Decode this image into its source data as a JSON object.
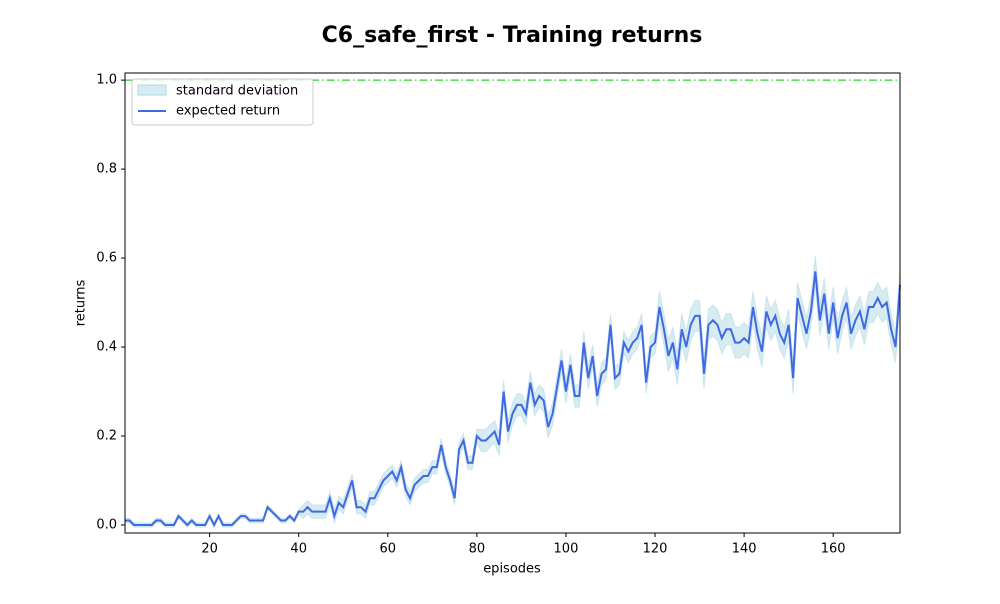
{
  "chart_data": {
    "type": "line",
    "title": "C6_safe_first - Training returns",
    "xlabel": "episodes",
    "ylabel": "returns",
    "x": [
      1,
      2,
      3,
      4,
      5,
      6,
      7,
      8,
      9,
      10,
      11,
      12,
      13,
      14,
      15,
      16,
      17,
      18,
      19,
      20,
      21,
      22,
      23,
      24,
      25,
      26,
      27,
      28,
      29,
      30,
      31,
      32,
      33,
      34,
      35,
      36,
      37,
      38,
      39,
      40,
      41,
      42,
      43,
      44,
      45,
      46,
      47,
      48,
      49,
      50,
      51,
      52,
      53,
      54,
      55,
      56,
      57,
      58,
      59,
      60,
      61,
      62,
      63,
      64,
      65,
      66,
      67,
      68,
      69,
      70,
      71,
      72,
      73,
      74,
      75,
      76,
      77,
      78,
      79,
      80,
      81,
      82,
      83,
      84,
      85,
      86,
      87,
      88,
      89,
      90,
      91,
      92,
      93,
      94,
      95,
      96,
      97,
      98,
      99,
      100,
      101,
      102,
      103,
      104,
      105,
      106,
      107,
      108,
      109,
      110,
      111,
      112,
      113,
      114,
      115,
      116,
      117,
      118,
      119,
      120,
      121,
      122,
      123,
      124,
      125,
      126,
      127,
      128,
      129,
      130,
      131,
      132,
      133,
      134,
      135,
      136,
      137,
      138,
      139,
      140,
      141,
      142,
      143,
      144,
      145,
      146,
      147,
      148,
      149,
      150,
      151,
      152,
      153,
      154,
      155,
      156,
      157,
      158,
      159,
      160,
      161,
      162,
      163,
      164,
      165,
      166,
      167,
      168,
      169,
      170,
      171,
      172,
      173,
      174,
      175
    ],
    "series": [
      {
        "name": "expected return",
        "color": "#4169e1",
        "values": [
          0.01,
          0.01,
          0,
          0,
          0,
          0,
          0,
          0.01,
          0.01,
          0,
          0,
          0,
          0.02,
          0.01,
          0,
          0.01,
          0,
          0,
          0,
          0.02,
          0,
          0.02,
          0,
          0,
          0,
          0.01,
          0.02,
          0.02,
          0.01,
          0.01,
          0.01,
          0.01,
          0.04,
          0.03,
          0.02,
          0.01,
          0.01,
          0.02,
          0.01,
          0.03,
          0.03,
          0.04,
          0.03,
          0.03,
          0.03,
          0.03,
          0.06,
          0.02,
          0.05,
          0.04,
          0.07,
          0.1,
          0.04,
          0.04,
          0.03,
          0.06,
          0.06,
          0.08,
          0.1,
          0.11,
          0.12,
          0.1,
          0.13,
          0.08,
          0.06,
          0.09,
          0.1,
          0.11,
          0.11,
          0.13,
          0.13,
          0.18,
          0.13,
          0.1,
          0.06,
          0.17,
          0.19,
          0.14,
          0.14,
          0.2,
          0.19,
          0.19,
          0.2,
          0.21,
          0.18,
          0.3,
          0.21,
          0.25,
          0.27,
          0.27,
          0.25,
          0.32,
          0.27,
          0.29,
          0.28,
          0.22,
          0.25,
          0.31,
          0.37,
          0.3,
          0.36,
          0.29,
          0.29,
          0.41,
          0.33,
          0.38,
          0.29,
          0.34,
          0.35,
          0.45,
          0.33,
          0.34,
          0.41,
          0.39,
          0.41,
          0.42,
          0.45,
          0.32,
          0.4,
          0.41,
          0.49,
          0.44,
          0.38,
          0.41,
          0.35,
          0.44,
          0.4,
          0.45,
          0.47,
          0.47,
          0.34,
          0.45,
          0.46,
          0.45,
          0.42,
          0.44,
          0.44,
          0.41,
          0.41,
          0.42,
          0.41,
          0.49,
          0.43,
          0.39,
          0.48,
          0.45,
          0.47,
          0.43,
          0.41,
          0.45,
          0.33,
          0.51,
          0.47,
          0.43,
          0.48,
          0.57,
          0.46,
          0.52,
          0.43,
          0.5,
          0.42,
          0.47,
          0.5,
          0.43,
          0.46,
          0.48,
          0.44,
          0.49,
          0.49,
          0.51,
          0.49,
          0.5,
          0.44,
          0.4,
          0.54
        ]
      }
    ],
    "band": {
      "name": "standard deviation",
      "color": "#add8e6",
      "std": [
        0.005,
        0.005,
        0.005,
        0.005,
        0.005,
        0.005,
        0.005,
        0.005,
        0.005,
        0.005,
        0.005,
        0.005,
        0.005,
        0.005,
        0.005,
        0.005,
        0.005,
        0.005,
        0.005,
        0.005,
        0.005,
        0.005,
        0.005,
        0.005,
        0.005,
        0.005,
        0.005,
        0.005,
        0.005,
        0.005,
        0.005,
        0.005,
        0.005,
        0.005,
        0.005,
        0.005,
        0.005,
        0.005,
        0.005,
        0.005,
        0.015,
        0.015,
        0.015,
        0.015,
        0.015,
        0.015,
        0.015,
        0.015,
        0.015,
        0.015,
        0.015,
        0.015,
        0.015,
        0.015,
        0.015,
        0.015,
        0.015,
        0.015,
        0.015,
        0.015,
        0.015,
        0.015,
        0.015,
        0.015,
        0.015,
        0.015,
        0.015,
        0.015,
        0.015,
        0.015,
        0.015,
        0.015,
        0.015,
        0.015,
        0.015,
        0.015,
        0.015,
        0.015,
        0.015,
        0.015,
        0.025,
        0.025,
        0.025,
        0.025,
        0.025,
        0.025,
        0.025,
        0.025,
        0.025,
        0.025,
        0.025,
        0.025,
        0.025,
        0.025,
        0.025,
        0.025,
        0.025,
        0.025,
        0.025,
        0.025,
        0.025,
        0.025,
        0.025,
        0.025,
        0.025,
        0.025,
        0.025,
        0.025,
        0.025,
        0.025,
        0.025,
        0.025,
        0.025,
        0.025,
        0.025,
        0.025,
        0.025,
        0.025,
        0.025,
        0.025,
        0.035,
        0.035,
        0.035,
        0.035,
        0.035,
        0.035,
        0.035,
        0.035,
        0.035,
        0.035,
        0.035,
        0.035,
        0.035,
        0.035,
        0.035,
        0.035,
        0.035,
        0.035,
        0.035,
        0.035,
        0.035,
        0.035,
        0.035,
        0.035,
        0.035,
        0.035,
        0.035,
        0.035,
        0.035,
        0.035,
        0.035,
        0.035,
        0.035,
        0.035,
        0.035,
        0.035,
        0.035,
        0.035,
        0.035,
        0.035,
        0.035,
        0.035,
        0.035,
        0.035,
        0.035,
        0.035,
        0.035,
        0.035,
        0.035,
        0.035,
        0.035,
        0.035,
        0.035,
        0.035,
        0.035
      ]
    },
    "reference_line": {
      "value": 1.0,
      "color": "#32cd32"
    },
    "xlim": [
      1,
      175
    ],
    "ylim": [
      -0.018,
      1.016
    ],
    "xticks": [
      20,
      40,
      60,
      80,
      100,
      120,
      140,
      160
    ],
    "yticks": [
      {
        "value": 0,
        "label": "0.0"
      },
      0.2,
      0.4,
      0.6,
      0.8,
      {
        "value": 1,
        "label": "1.0"
      }
    ],
    "legend": "upper left"
  }
}
